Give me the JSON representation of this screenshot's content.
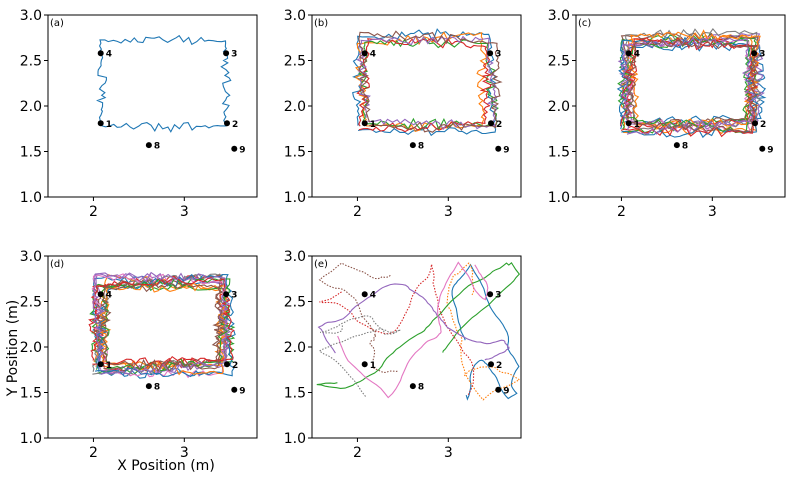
{
  "chart_data": {
    "type": "line",
    "xlabel": "X Position (m)",
    "ylabel": "Y Position (m)",
    "xlim": [
      1.5,
      3.8
    ],
    "ylim": [
      1.0,
      3.0
    ],
    "xticks": [
      "2",
      "3"
    ],
    "yticks": [
      "1.0",
      "1.5",
      "2.0",
      "2.5",
      "3.0"
    ],
    "grid": false,
    "series_colors": [
      "#1f77b4",
      "#ff7f0e",
      "#2ca02c",
      "#d62728",
      "#9467bd",
      "#8c564b",
      "#e377c2",
      "#7f7f7f"
    ],
    "markers": [
      {
        "label": "1",
        "x": 2.08,
        "y": 1.81
      },
      {
        "label": "2",
        "x": 3.47,
        "y": 1.81
      },
      {
        "label": "3",
        "x": 3.46,
        "y": 2.58
      },
      {
        "label": "4",
        "x": 2.08,
        "y": 2.58
      },
      {
        "label": "8",
        "x": 2.61,
        "y": 1.57
      },
      {
        "label": "9",
        "x": 3.55,
        "y": 1.53
      }
    ],
    "panels": [
      {
        "label": "(a)",
        "style": "rect",
        "n_traj": 1
      },
      {
        "label": "(b)",
        "style": "rect",
        "n_traj": 6
      },
      {
        "label": "(c)",
        "style": "rect",
        "n_traj": 14
      },
      {
        "label": "(d)",
        "style": "rect",
        "n_traj": 14
      },
      {
        "label": "(e)",
        "style": "random",
        "n_traj": 8
      }
    ]
  }
}
